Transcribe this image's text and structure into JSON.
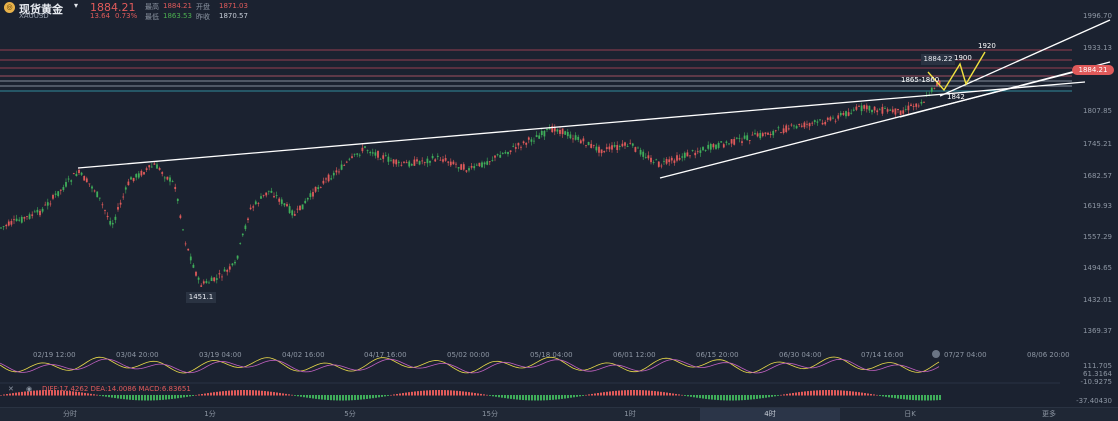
{
  "header": {
    "title": "现货黄金",
    "symbol": "XAUUSD",
    "price": "1884.21",
    "change": "13.64",
    "change_pct": "0.73%",
    "high_label": "最高",
    "high": "1884.21",
    "low_label": "最低",
    "low": "1863.53",
    "open_label": "开盘",
    "open": "1871.03",
    "prev_label": "昨收",
    "prev": "1870.57"
  },
  "y_axis": [
    "1996.70",
    "1933.13",
    "1884.21",
    "1807.85",
    "1745.21",
    "1682.57",
    "1619.93",
    "1557.29",
    "1494.65",
    "1432.01",
    "1369.37"
  ],
  "x_axis": [
    "02/19 12:00",
    "03/04 20:00",
    "03/19 04:00",
    "04/02 16:00",
    "04/17 16:00",
    "05/02 00:00",
    "05/18 04:00",
    "06/01 12:00",
    "06/15 20:00",
    "06/30 04:00",
    "07/14 16:00",
    "07/27 04:00",
    "08/06 20:00"
  ],
  "annotations": {
    "low_box": "1451.1",
    "high_box": "1884.22",
    "t1900": "1900",
    "t1920": "1920",
    "t1865": "1865-1860",
    "t1842": "1842"
  },
  "macd": {
    "label": "DIFF:17.4262 DEA:14.0086 MACD:6.83651",
    "axis": [
      "111.705",
      "61.3164",
      "-10.9275",
      "-37.40430"
    ]
  },
  "tabs": [
    "分时",
    "1分",
    "5分",
    "15分",
    "1时",
    "4时",
    "日K",
    "更多"
  ],
  "active_tab": "4时",
  "chart_data": {
    "type": "candlestick",
    "last_price": 1884.21,
    "marked_low": 1451.1,
    "marked_high": 1884.22,
    "targets": [
      1900,
      1920
    ],
    "support": [
      1865,
      1860,
      1842
    ],
    "ylim": [
      1369.37,
      1996.7
    ]
  }
}
